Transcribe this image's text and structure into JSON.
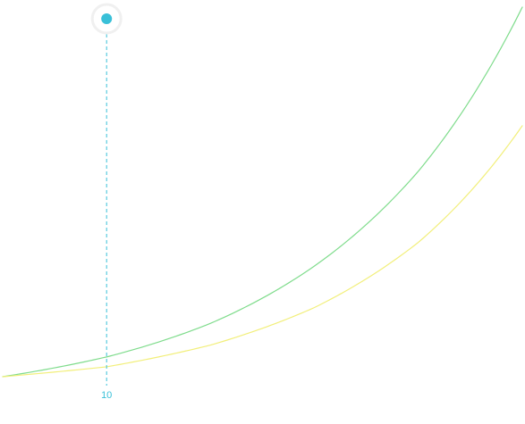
{
  "chart_data": {
    "type": "line",
    "title": "",
    "xlabel": "",
    "ylabel": "",
    "grid": false,
    "x": [
      0,
      10,
      20,
      30,
      40,
      50
    ],
    "series": [
      {
        "color": "#7fdc8c",
        "values": [
          20,
          30,
          47,
          76,
          124,
          207
        ]
      },
      {
        "color": "#f2ef7a",
        "values": [
          20,
          25,
          36,
          55,
          88,
          147
        ]
      }
    ],
    "xlim": [
      0,
      50
    ],
    "ylim": [
      20,
      207
    ],
    "cursor": {
      "x": 10,
      "label": "10",
      "color": "#39c0d8"
    }
  }
}
